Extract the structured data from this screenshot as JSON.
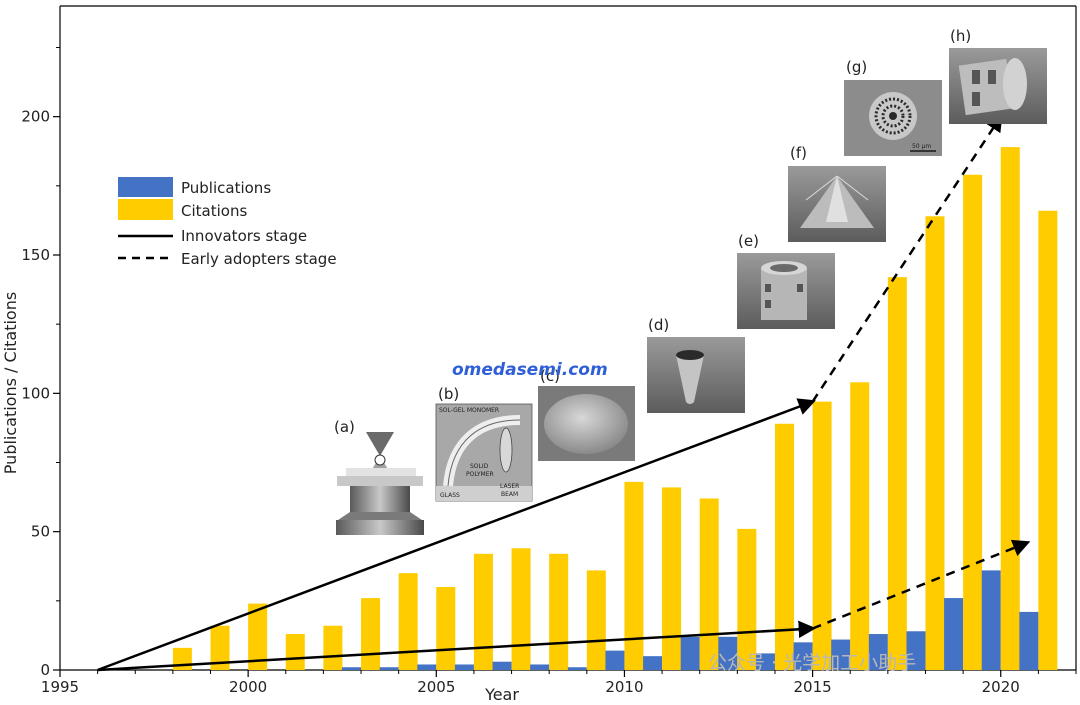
{
  "chart_data": {
    "type": "bar",
    "xlabel": "Year",
    "ylabel": "Publications / Citations",
    "xlim": [
      1995,
      2022
    ],
    "ylim": [
      0,
      240
    ],
    "xticks": [
      1995,
      2000,
      2005,
      2010,
      2015,
      2020
    ],
    "yticks": [
      0,
      50,
      100,
      150,
      200
    ],
    "x": [
      1998,
      1999,
      2000,
      2001,
      2002,
      2003,
      2004,
      2005,
      2006,
      2007,
      2008,
      2009,
      2010,
      2011,
      2012,
      2013,
      2014,
      2015,
      2016,
      2017,
      2018,
      2019,
      2020,
      2021
    ],
    "series": [
      {
        "name": "Publications",
        "color": "#4472c4",
        "values": [
          0,
          0,
          0,
          0,
          0,
          1,
          1,
          2,
          2,
          3,
          2,
          1,
          7,
          5,
          12,
          12,
          6,
          10,
          11,
          13,
          14,
          26,
          36,
          21
        ]
      },
      {
        "name": "Citations",
        "color": "#ffcc00",
        "values": [
          8,
          16,
          24,
          13,
          16,
          26,
          35,
          30,
          42,
          44,
          42,
          36,
          68,
          66,
          62,
          51,
          89,
          97,
          104,
          142,
          164,
          179,
          189,
          166
        ]
      }
    ],
    "legend": {
      "placement": "left",
      "entries": [
        {
          "label": "Publications",
          "kind": "bar",
          "color": "#4472c4"
        },
        {
          "label": "Citations",
          "kind": "bar",
          "color": "#ffcc00"
        },
        {
          "label": "Innovators stage",
          "kind": "solid-line"
        },
        {
          "label": "Early adopters stage",
          "kind": "dashed-line"
        }
      ]
    },
    "trend_arrows": [
      {
        "stage": "Innovators stage",
        "style": "solid",
        "from": [
          1996,
          0
        ],
        "to": [
          2015,
          97
        ]
      },
      {
        "stage": "Innovators stage",
        "style": "solid",
        "from": [
          1996,
          0
        ],
        "to": [
          2015,
          15
        ]
      },
      {
        "stage": "Early adopters stage",
        "style": "dashed",
        "from": [
          2015,
          97
        ],
        "to": [
          2020,
          200
        ]
      },
      {
        "stage": "Early adopters stage",
        "style": "dashed",
        "from": [
          2015,
          15
        ],
        "to": [
          2020.7,
          46
        ]
      }
    ],
    "panel_labels": [
      "(a)",
      "(b)",
      "(c)",
      "(d)",
      "(e)",
      "(f)",
      "(g)",
      "(h)"
    ],
    "inset_text": {
      "b": [
        "SOL-GEL MONOMER",
        "SOLID",
        "POLYMER",
        "LASER",
        "BEAM",
        "GLASS"
      ],
      "g": [
        "50 µm"
      ]
    },
    "watermarks": [
      "omedasemi.com",
      "公众号 · 光学加工小助手"
    ]
  }
}
